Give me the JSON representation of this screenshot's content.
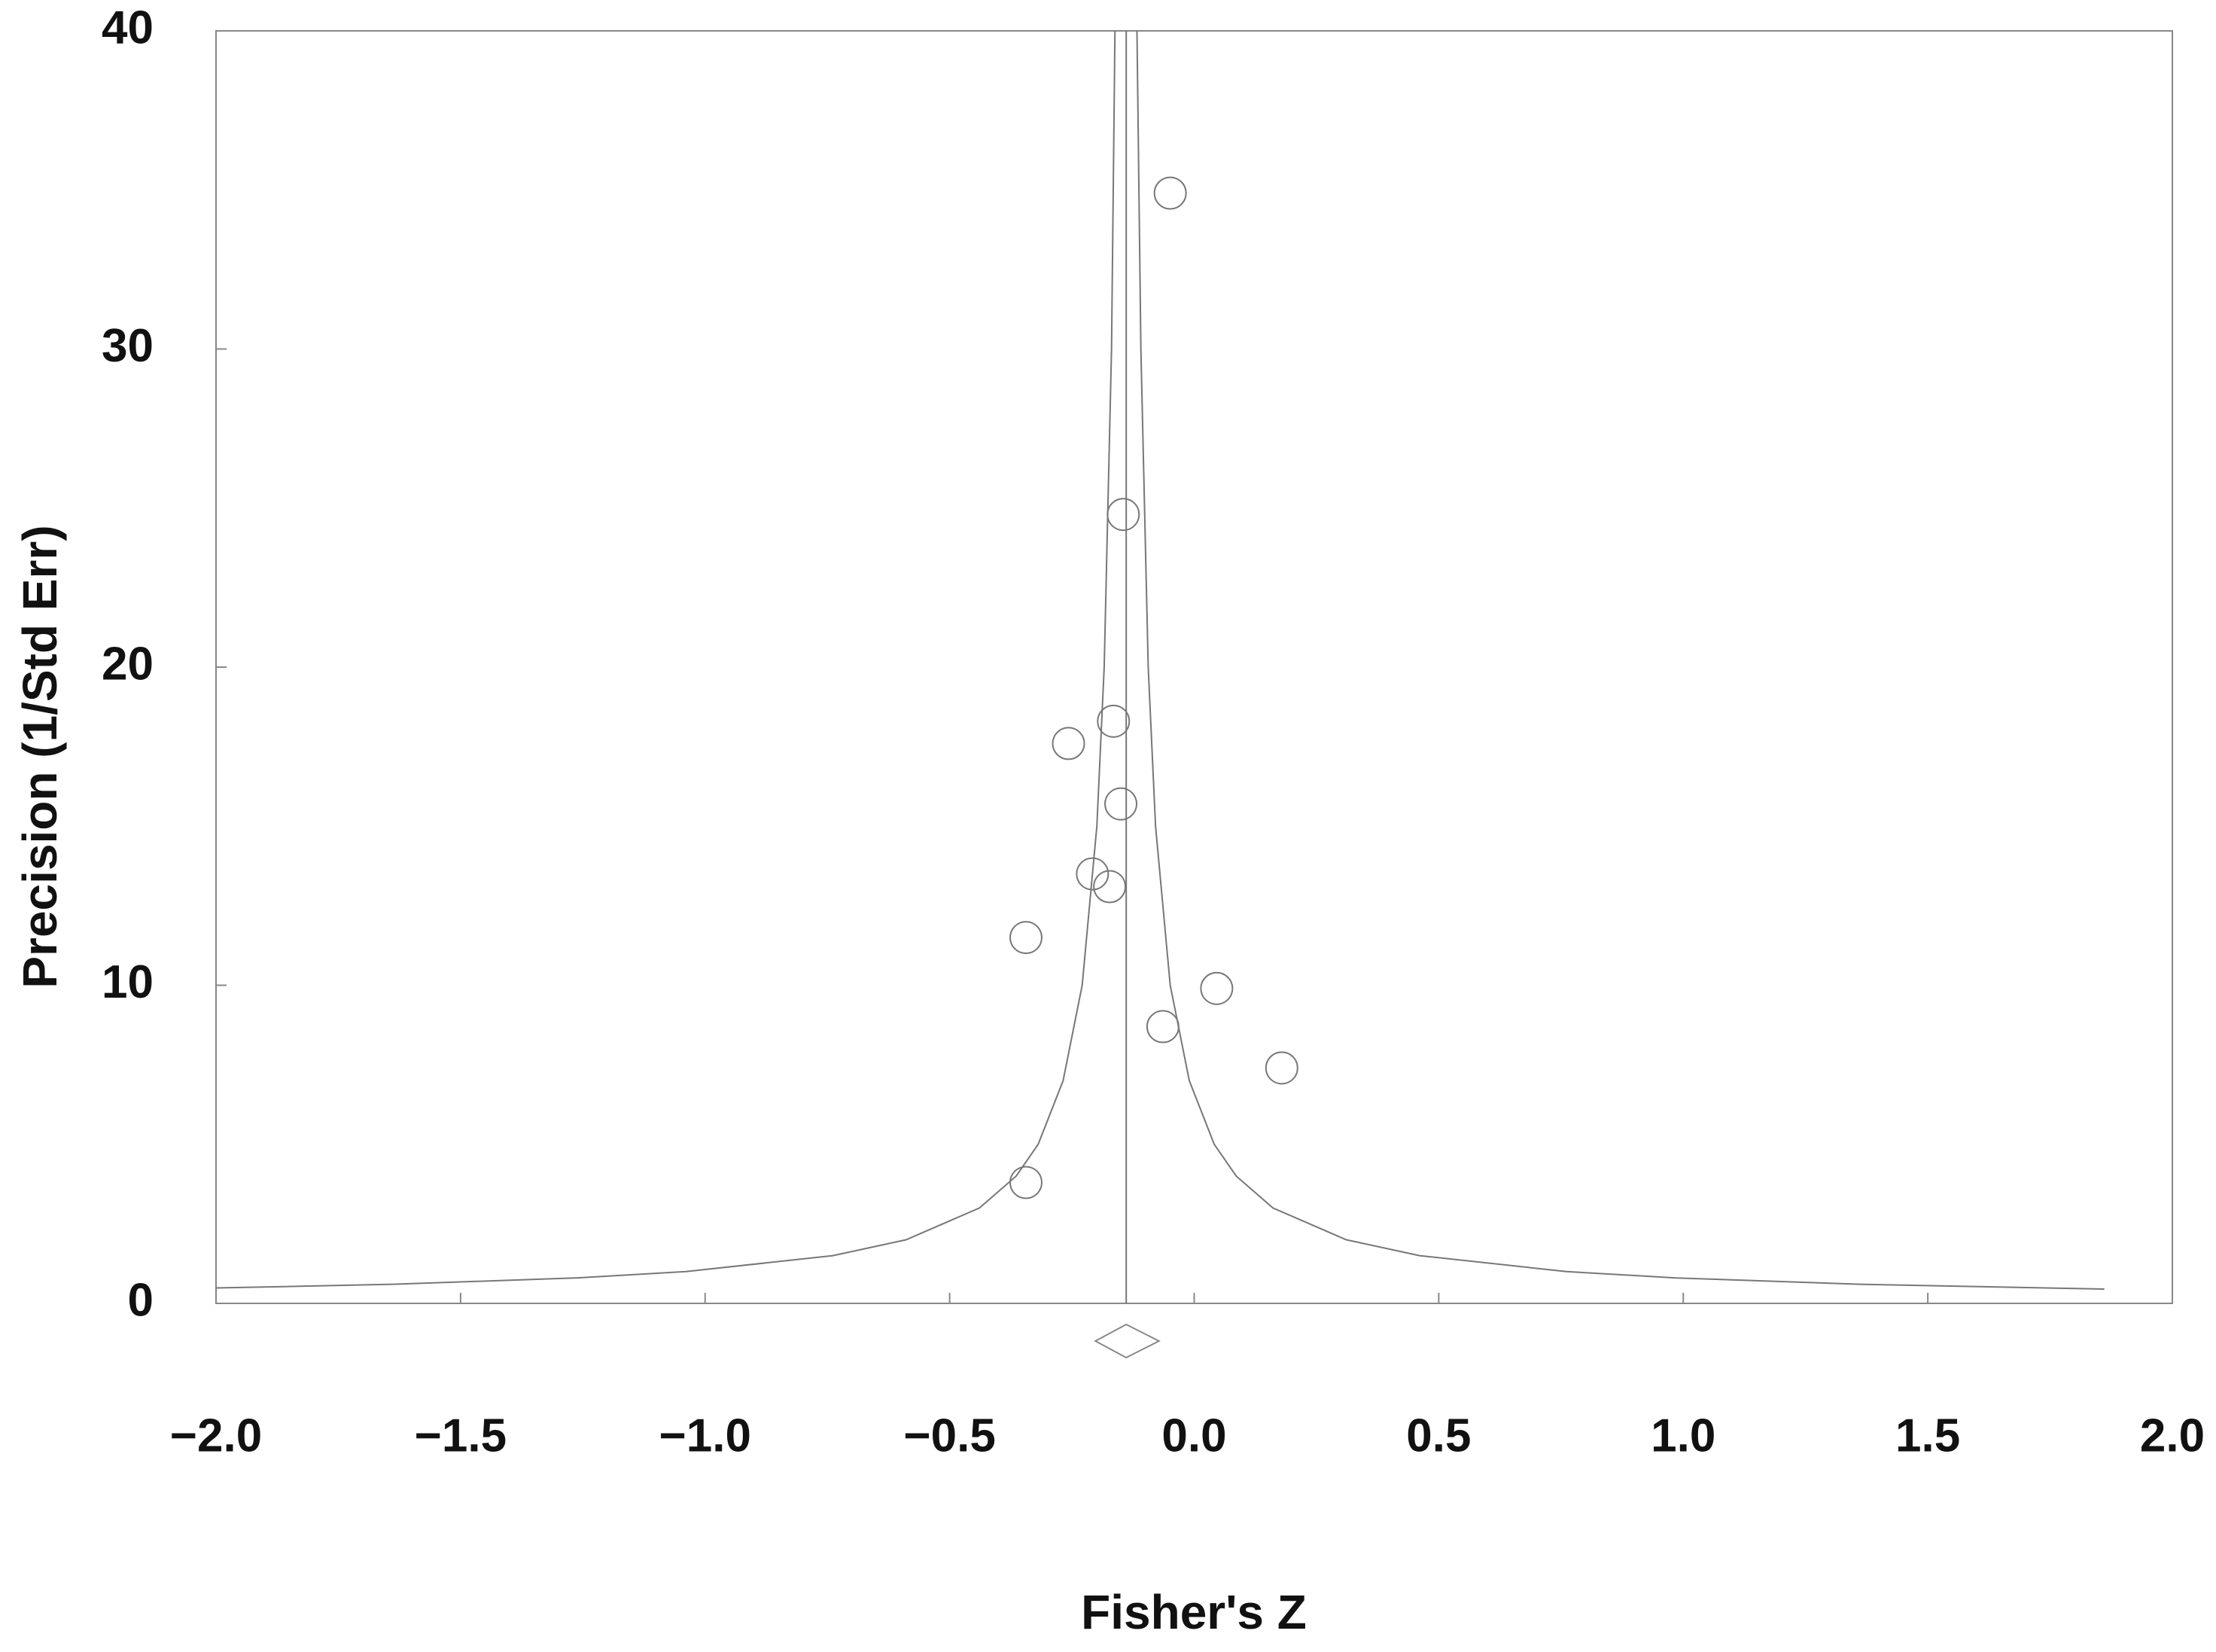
{
  "chart_data": {
    "type": "scatter",
    "x_label": "Fisher's Z",
    "y_label": "Precision (1/Std Err)",
    "xlim": [
      -2.0,
      2.0
    ],
    "ylim": [
      0,
      40
    ],
    "xticks": [
      {
        "value": -2.0,
        "label": "−2.0"
      },
      {
        "value": -1.5,
        "label": "−1.5"
      },
      {
        "value": -1.0,
        "label": "−1.0"
      },
      {
        "value": -0.5,
        "label": "−0.5"
      },
      {
        "value": 0,
        "label": "0.0"
      },
      0.5,
      {
        "value": 1.0,
        "label": "1.0"
      },
      1.5,
      {
        "value": 2.0,
        "label": "2.0"
      }
    ],
    "yticks": [
      0,
      10,
      20,
      30,
      40
    ],
    "x": [
      -0.049,
      -0.145,
      -0.165,
      -0.257,
      -0.15,
      -0.208,
      -0.173,
      -0.344,
      0.046,
      -0.064,
      0.179,
      -0.344
    ],
    "values": [
      34.9,
      24.8,
      18.3,
      17.6,
      15.7,
      13.5,
      13.1,
      11.5,
      9.9,
      8.7,
      7.4,
      3.8
    ],
    "funnel": [
      {
        "x": [
          -2.0,
          -1.639,
          -1.264,
          -1.039,
          -0.739,
          -0.589,
          -0.439,
          -0.364,
          -0.319,
          -0.268,
          -0.229,
          -0.199,
          -0.184,
          -0.169,
          -0.162
        ],
        "values": [
          0.484,
          0.6,
          0.8,
          1,
          1.5,
          2,
          3,
          4,
          5,
          7,
          10,
          15,
          20,
          30,
          40
        ]
      },
      {
        "x": [
          1.861,
          1.361,
          0.986,
          0.761,
          0.461,
          0.311,
          0.161,
          0.086,
          0.041,
          -0.01,
          -0.049,
          -0.079,
          -0.094,
          -0.109,
          -0.117
        ],
        "values": [
          0.45,
          0.6,
          0.8,
          1,
          1.5,
          2,
          3,
          4,
          5,
          7,
          10,
          15,
          20,
          30,
          40
        ]
      }
    ],
    "summary": {
      "estimate": -0.139,
      "lower": -0.202,
      "upper": -0.072
    }
  }
}
